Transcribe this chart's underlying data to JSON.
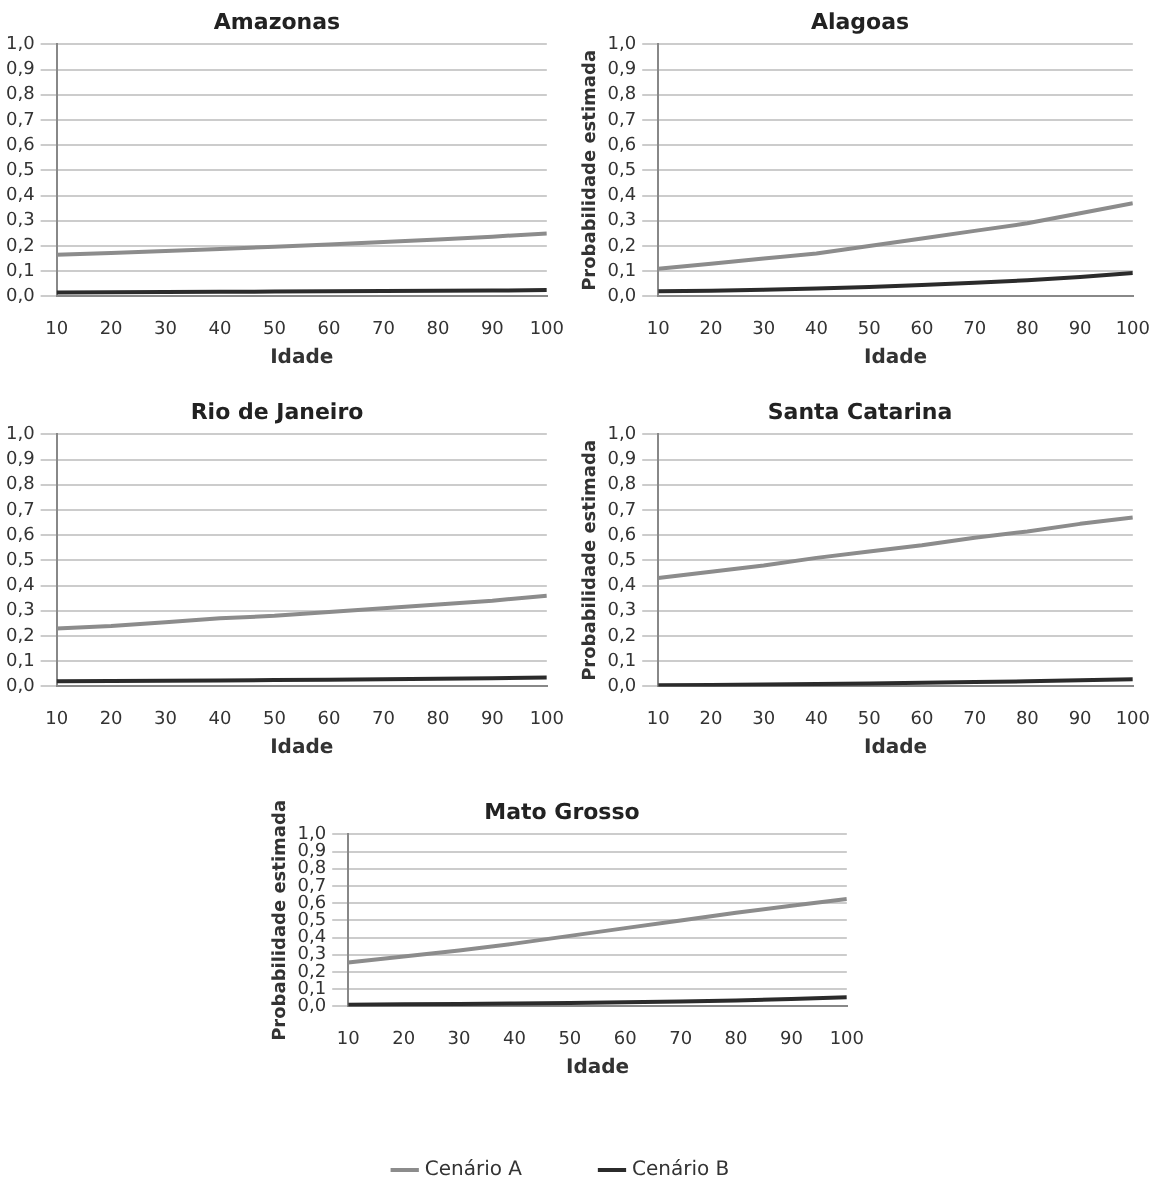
{
  "chart_data": [
    {
      "type": "line",
      "title": "Amazonas",
      "xlabel": "Idade",
      "x": [
        10,
        20,
        30,
        40,
        50,
        60,
        70,
        80,
        90,
        100
      ],
      "xlim": [
        10,
        100
      ],
      "xticks": [
        10,
        20,
        30,
        40,
        50,
        60,
        70,
        80,
        90,
        100
      ],
      "ylim": [
        0,
        1
      ],
      "yticks": [
        {
          "value": 0,
          "label": "0,0"
        },
        {
          "value": 0.1,
          "label": "0,1"
        },
        {
          "value": 0.2,
          "label": "0,2"
        },
        {
          "value": 0.3,
          "label": "0,3"
        },
        {
          "value": 0.4,
          "label": "0,4"
        },
        {
          "value": 0.5,
          "label": "0,5"
        },
        {
          "value": 0.6,
          "label": "0,6"
        },
        {
          "value": 0.7,
          "label": "0,7"
        },
        {
          "value": 0.8,
          "label": "0,8"
        },
        {
          "value": 0.9,
          "label": "0,9"
        },
        {
          "value": 1,
          "label": "1,0"
        }
      ],
      "grid": "y",
      "marker": "none",
      "series": [
        {
          "color": "#8c8c8c",
          "values": [
            0.165,
            0.172,
            0.18,
            0.188,
            0.197,
            0.206,
            0.216,
            0.226,
            0.237,
            0.25
          ]
        },
        {
          "color": "#2b2b2b",
          "values": [
            0.015,
            0.016,
            0.017,
            0.018,
            0.019,
            0.02,
            0.021,
            0.022,
            0.023,
            0.025
          ]
        }
      ]
    },
    {
      "type": "line",
      "title": "Alagoas",
      "xlabel": "Idade",
      "ylabel": "Probabilidade estimada",
      "x": [
        10,
        20,
        30,
        40,
        50,
        60,
        70,
        80,
        90,
        100
      ],
      "xlim": [
        10,
        100
      ],
      "xticks": [
        10,
        20,
        30,
        40,
        50,
        60,
        70,
        80,
        90,
        100
      ],
      "ylim": [
        0,
        1
      ],
      "yticks": [
        {
          "value": 0,
          "label": "0,0"
        },
        {
          "value": 0.1,
          "label": "0,1"
        },
        {
          "value": 0.2,
          "label": "0,2"
        },
        {
          "value": 0.3,
          "label": "0,3"
        },
        {
          "value": 0.4,
          "label": "0,4"
        },
        {
          "value": 0.5,
          "label": "0,5"
        },
        {
          "value": 0.6,
          "label": "0,6"
        },
        {
          "value": 0.7,
          "label": "0,7"
        },
        {
          "value": 0.8,
          "label": "0,8"
        },
        {
          "value": 0.9,
          "label": "0,9"
        },
        {
          "value": 1,
          "label": "1,0"
        }
      ],
      "grid": "y",
      "marker": "none",
      "series": [
        {
          "color": "#8c8c8c",
          "values": [
            0.11,
            0.13,
            0.15,
            0.17,
            0.2,
            0.23,
            0.26,
            0.29,
            0.33,
            0.37
          ]
        },
        {
          "color": "#2b2b2b",
          "values": [
            0.02,
            0.022,
            0.026,
            0.031,
            0.037,
            0.045,
            0.054,
            0.064,
            0.077,
            0.093
          ]
        }
      ]
    },
    {
      "type": "line",
      "title": "Rio de Janeiro",
      "xlabel": "Idade",
      "x": [
        10,
        20,
        30,
        40,
        50,
        60,
        70,
        80,
        90,
        100
      ],
      "xlim": [
        10,
        100
      ],
      "xticks": [
        10,
        20,
        30,
        40,
        50,
        60,
        70,
        80,
        90,
        100
      ],
      "ylim": [
        0,
        1
      ],
      "yticks": [
        {
          "value": 0,
          "label": "0,0"
        },
        {
          "value": 0.1,
          "label": "0,1"
        },
        {
          "value": 0.2,
          "label": "0,2"
        },
        {
          "value": 0.3,
          "label": "0,3"
        },
        {
          "value": 0.4,
          "label": "0,4"
        },
        {
          "value": 0.5,
          "label": "0,5"
        },
        {
          "value": 0.6,
          "label": "0,6"
        },
        {
          "value": 0.7,
          "label": "0,7"
        },
        {
          "value": 0.8,
          "label": "0,8"
        },
        {
          "value": 0.9,
          "label": "0,9"
        },
        {
          "value": 1,
          "label": "1,0"
        }
      ],
      "grid": "y",
      "marker": "none",
      "series": [
        {
          "color": "#8c8c8c",
          "values": [
            0.23,
            0.24,
            0.255,
            0.27,
            0.28,
            0.295,
            0.31,
            0.325,
            0.34,
            0.36
          ]
        },
        {
          "color": "#2b2b2b",
          "values": [
            0.02,
            0.021,
            0.022,
            0.023,
            0.025,
            0.026,
            0.028,
            0.03,
            0.032,
            0.035
          ]
        }
      ]
    },
    {
      "type": "line",
      "title": "Santa Catarina",
      "xlabel": "Idade",
      "ylabel": "Probabilidade estimada",
      "x": [
        10,
        20,
        30,
        40,
        50,
        60,
        70,
        80,
        90,
        100
      ],
      "xlim": [
        10,
        100
      ],
      "xticks": [
        10,
        20,
        30,
        40,
        50,
        60,
        70,
        80,
        90,
        100
      ],
      "ylim": [
        0,
        1
      ],
      "yticks": [
        {
          "value": 0,
          "label": "0,0"
        },
        {
          "value": 0.1,
          "label": "0,1"
        },
        {
          "value": 0.2,
          "label": "0,2"
        },
        {
          "value": 0.3,
          "label": "0,3"
        },
        {
          "value": 0.4,
          "label": "0,4"
        },
        {
          "value": 0.5,
          "label": "0,5"
        },
        {
          "value": 0.6,
          "label": "0,6"
        },
        {
          "value": 0.7,
          "label": "0,7"
        },
        {
          "value": 0.8,
          "label": "0,8"
        },
        {
          "value": 0.9,
          "label": "0,9"
        },
        {
          "value": 1,
          "label": "1,0"
        }
      ],
      "grid": "y",
      "marker": "none",
      "series": [
        {
          "color": "#8c8c8c",
          "values": [
            0.43,
            0.455,
            0.48,
            0.51,
            0.535,
            0.56,
            0.59,
            0.615,
            0.645,
            0.67
          ]
        },
        {
          "color": "#2b2b2b",
          "values": [
            0.005,
            0.006,
            0.008,
            0.01,
            0.012,
            0.014,
            0.017,
            0.02,
            0.024,
            0.028
          ]
        }
      ]
    },
    {
      "type": "line",
      "title": "Mato Grosso",
      "xlabel": "Idade",
      "ylabel": "Probabilidade estimada",
      "x": [
        10,
        20,
        30,
        40,
        50,
        60,
        70,
        80,
        90,
        100
      ],
      "xlim": [
        10,
        100
      ],
      "xticks": [
        10,
        20,
        30,
        40,
        50,
        60,
        70,
        80,
        90,
        100
      ],
      "ylim": [
        0,
        1
      ],
      "yticks": [
        {
          "value": 0,
          "label": "0,0"
        },
        {
          "value": 0.1,
          "label": "0,1"
        },
        {
          "value": 0.2,
          "label": "0,2"
        },
        {
          "value": 0.3,
          "label": "0,3"
        },
        {
          "value": 0.4,
          "label": "0,4"
        },
        {
          "value": 0.5,
          "label": "0,5"
        },
        {
          "value": 0.6,
          "label": "0,6"
        },
        {
          "value": 0.7,
          "label": "0,7"
        },
        {
          "value": 0.8,
          "label": "0,8"
        },
        {
          "value": 0.9,
          "label": "0,9"
        },
        {
          "value": 1,
          "label": "1,0"
        }
      ],
      "grid": "y",
      "marker": "none",
      "legend": "bottom",
      "series": [
        {
          "name": "Cenário A",
          "color": "#8c8c8c",
          "values": [
            0.255,
            0.29,
            0.325,
            0.365,
            0.41,
            0.455,
            0.5,
            0.545,
            0.585,
            0.625
          ]
        },
        {
          "name": "Cenário B",
          "color": "#2b2b2b",
          "values": [
            0.01,
            0.012,
            0.014,
            0.017,
            0.02,
            0.024,
            0.029,
            0.035,
            0.043,
            0.053
          ]
        }
      ]
    }
  ]
}
